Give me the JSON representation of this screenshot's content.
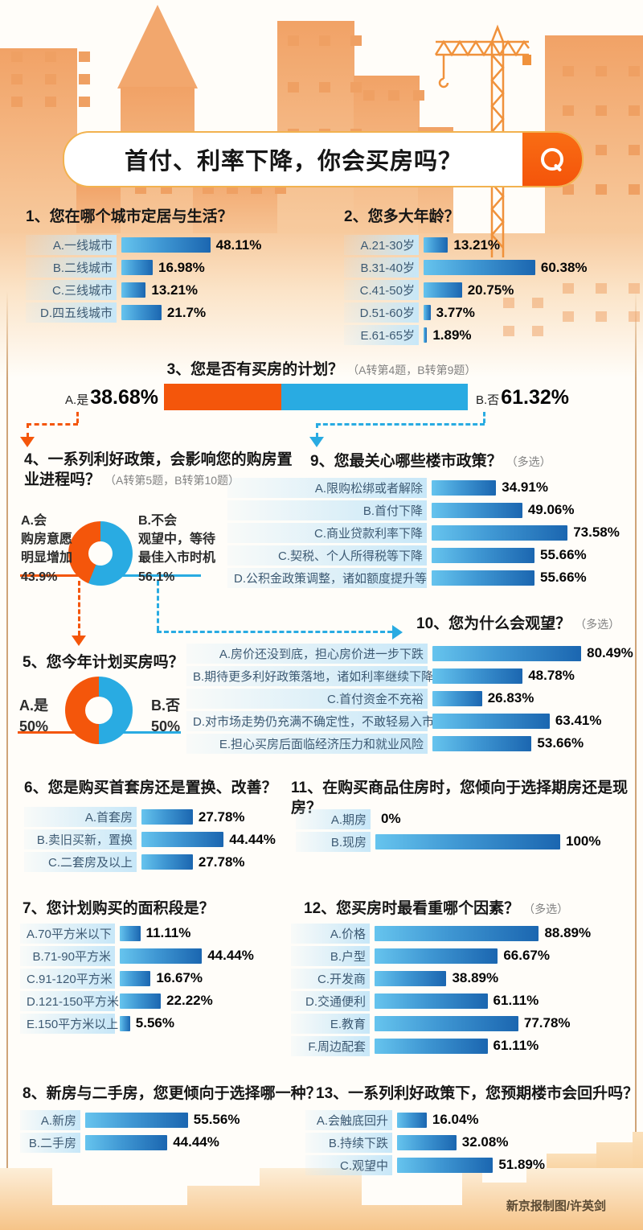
{
  "colors": {
    "orange": "#f4560b",
    "blue": "#29abe2",
    "bar_light": "#66c4ee",
    "bar_dark": "#1b66b0",
    "label_bg": "#c7e7f8",
    "building": "#f1a266",
    "window": "#efa063"
  },
  "header": {
    "title": "首付、利率下降，你会买房吗？"
  },
  "q": {
    "q1": {
      "title": "1、您在哪个城市定居与生活？",
      "rows": [
        {
          "label": "A.一线城市",
          "value": "48.11%",
          "pct": 48.11
        },
        {
          "label": "B.二线城市",
          "value": "16.98%",
          "pct": 16.98
        },
        {
          "label": "C.三线城市",
          "value": "13.21%",
          "pct": 13.21
        },
        {
          "label": "D.四五线城市",
          "value": "21.7%",
          "pct": 21.7
        }
      ]
    },
    "q2": {
      "title": "2、您多大年龄？",
      "rows": [
        {
          "label": "A.21-30岁",
          "value": "13.21%",
          "pct": 13.21
        },
        {
          "label": "B.31-40岁",
          "value": "60.38%",
          "pct": 60.38
        },
        {
          "label": "C.41-50岁",
          "value": "20.75%",
          "pct": 20.75
        },
        {
          "label": "D.51-60岁",
          "value": "3.77%",
          "pct": 3.77
        },
        {
          "label": "E.61-65岁",
          "value": "1.89%",
          "pct": 1.89
        }
      ]
    },
    "q3": {
      "title": "3、您是否有买房的计划？",
      "note": "（A转第4题，B转第9题）",
      "a_label": "A.是",
      "a_value": "38.68%",
      "a_pct": 38.68,
      "b_label": "B.否",
      "b_value": "61.32%",
      "b_pct": 61.32
    },
    "q4": {
      "title": "4、一系列利好政策，会影响您的购房置业进程吗？",
      "note": "（A转第5题，B转第10题）",
      "a_label": "A.会\n购房意愿\n明显增加\n43.9%",
      "a_pct": 43.9,
      "b_label": "B.不会\n观望中，等待\n最佳入市时机\n56.1%",
      "b_pct": 56.1
    },
    "q5": {
      "title": "5、您今年计划买房吗？",
      "a_label": "A.是\n50%",
      "a_pct": 50,
      "b_label": "B.否\n50%",
      "b_pct": 50
    },
    "q6": {
      "title": "6、您是购买首套房还是置换、改善？",
      "rows": [
        {
          "label": "A.首套房",
          "value": "27.78%",
          "pct": 27.78
        },
        {
          "label": "B.卖旧买新，置换",
          "value": "44.44%",
          "pct": 44.44
        },
        {
          "label": "C.二套房及以上",
          "value": "27.78%",
          "pct": 27.78
        }
      ]
    },
    "q7": {
      "title": "7、您计划购买的面积段是？",
      "rows": [
        {
          "label": "A.70平方米以下",
          "value": "11.11%",
          "pct": 11.11
        },
        {
          "label": "B.71-90平方米",
          "value": "44.44%",
          "pct": 44.44
        },
        {
          "label": "C.91-120平方米",
          "value": "16.67%",
          "pct": 16.67
        },
        {
          "label": "D.121-150平方米",
          "value": "22.22%",
          "pct": 22.22
        },
        {
          "label": "E.150平方米以上",
          "value": "5.56%",
          "pct": 5.56
        }
      ]
    },
    "q8": {
      "title": "8、新房与二手房，您更倾向于选择哪一种？",
      "rows": [
        {
          "label": "A.新房",
          "value": "55.56%",
          "pct": 55.56
        },
        {
          "label": "B.二手房",
          "value": "44.44%",
          "pct": 44.44
        }
      ]
    },
    "q9": {
      "title": "9、您最关心哪些楼市政策？",
      "note": "（多选）",
      "rows": [
        {
          "label": "A.限购松绑或者解除",
          "value": "34.91%",
          "pct": 34.91
        },
        {
          "label": "B.首付下降",
          "value": "49.06%",
          "pct": 49.06
        },
        {
          "label": "C.商业贷款利率下降",
          "value": "73.58%",
          "pct": 73.58
        },
        {
          "label": "C.契税、个人所得税等下降",
          "value": "55.66%",
          "pct": 55.66
        },
        {
          "label": "D.公积金政策调整，诸如额度提升等",
          "value": "55.66%",
          "pct": 55.66
        }
      ]
    },
    "q10": {
      "title": "10、您为什么会观望？",
      "note": "（多选）",
      "rows": [
        {
          "label": "A.房价还没到底，担心房价进一步下跌",
          "value": "80.49%",
          "pct": 80.49
        },
        {
          "label": "B.期待更多利好政策落地，诸如利率继续下降",
          "value": "48.78%",
          "pct": 48.78
        },
        {
          "label": "C.首付资金不充裕",
          "value": "26.83%",
          "pct": 26.83
        },
        {
          "label": "D.对市场走势仍充满不确定性，不敢轻易入市",
          "value": "63.41%",
          "pct": 63.41
        },
        {
          "label": "E.担心买房后面临经济压力和就业风险",
          "value": "53.66%",
          "pct": 53.66
        }
      ]
    },
    "q11": {
      "title": "11、在购买商品住房时，您倾向于选择期房还是现房？",
      "rows": [
        {
          "label": "A.期房",
          "value": "0%",
          "pct": 0
        },
        {
          "label": "B.现房",
          "value": "100%",
          "pct": 100
        }
      ]
    },
    "q12": {
      "title": "12、您买房时最看重哪个因素？",
      "note": "（多选）",
      "rows": [
        {
          "label": "A.价格",
          "value": "88.89%",
          "pct": 88.89
        },
        {
          "label": "B.户型",
          "value": "66.67%",
          "pct": 66.67
        },
        {
          "label": "C.开发商",
          "value": "38.89%",
          "pct": 38.89
        },
        {
          "label": "D.交通便利",
          "value": "61.11%",
          "pct": 61.11
        },
        {
          "label": "E.教育",
          "value": "77.78%",
          "pct": 77.78
        },
        {
          "label": "F.周边配套",
          "value": "61.11%",
          "pct": 61.11
        }
      ]
    },
    "q13": {
      "title": "13、一系列利好政策下，您预期楼市会回升吗？",
      "rows": [
        {
          "label": "A.会触底回升",
          "value": "16.04%",
          "pct": 16.04
        },
        {
          "label": "B.持续下跌",
          "value": "32.08%",
          "pct": 32.08
        },
        {
          "label": "C.观望中",
          "value": "51.89%",
          "pct": 51.89
        }
      ]
    }
  },
  "footer": {
    "credit": "新京报制图/许英剑"
  },
  "chart_data": [
    {
      "type": "bar",
      "title": "1、您在哪个城市定居与生活？",
      "categories": [
        "A.一线城市",
        "B.二线城市",
        "C.三线城市",
        "D.四五线城市"
      ],
      "values": [
        48.11,
        16.98,
        13.21,
        21.7
      ],
      "unit": "%"
    },
    {
      "type": "bar",
      "title": "2、您多大年龄？",
      "categories": [
        "A.21-30岁",
        "B.31-40岁",
        "C.41-50岁",
        "D.51-60岁",
        "E.61-65岁"
      ],
      "values": [
        13.21,
        60.38,
        20.75,
        3.77,
        1.89
      ],
      "unit": "%"
    },
    {
      "type": "bar",
      "subtype": "stacked-horizontal",
      "title": "3、您是否有买房的计划？（A转第4题，B转第9题）",
      "categories": [
        "A.是",
        "B.否"
      ],
      "values": [
        38.68,
        61.32
      ],
      "unit": "%"
    },
    {
      "type": "pie",
      "subtype": "donut",
      "title": "4、一系列利好政策，会影响您的购房置业进程吗？（A转第5题，B转第10题）",
      "categories": [
        "A.会 购房意愿明显增加",
        "B.不会 观望中，等待最佳入市时机"
      ],
      "values": [
        43.9,
        56.1
      ],
      "unit": "%"
    },
    {
      "type": "pie",
      "subtype": "donut",
      "title": "5、您今年计划买房吗？",
      "categories": [
        "A.是",
        "B.否"
      ],
      "values": [
        50,
        50
      ],
      "unit": "%"
    },
    {
      "type": "bar",
      "title": "6、您是购买首套房还是置换、改善？",
      "categories": [
        "A.首套房",
        "B.卖旧买新，置换",
        "C.二套房及以上"
      ],
      "values": [
        27.78,
        44.44,
        27.78
      ],
      "unit": "%"
    },
    {
      "type": "bar",
      "title": "7、您计划购买的面积段是？",
      "categories": [
        "A.70平方米以下",
        "B.71-90平方米",
        "C.91-120平方米",
        "D.121-150平方米",
        "E.150平方米以上"
      ],
      "values": [
        11.11,
        44.44,
        16.67,
        22.22,
        5.56
      ],
      "unit": "%"
    },
    {
      "type": "bar",
      "title": "8、新房与二手房，您更倾向于选择哪一种？",
      "categories": [
        "A.新房",
        "B.二手房"
      ],
      "values": [
        55.56,
        44.44
      ],
      "unit": "%"
    },
    {
      "type": "bar",
      "title": "9、您最关心哪些楼市政策？（多选）",
      "categories": [
        "A.限购松绑或者解除",
        "B.首付下降",
        "C.商业贷款利率下降",
        "C.契税、个人所得税等下降",
        "D.公积金政策调整，诸如额度提升等"
      ],
      "values": [
        34.91,
        49.06,
        73.58,
        55.66,
        55.66
      ],
      "unit": "%"
    },
    {
      "type": "bar",
      "title": "10、您为什么会观望？（多选）",
      "categories": [
        "A.房价还没到底，担心房价进一步下跌",
        "B.期待更多利好政策落地，诸如利率继续下降",
        "C.首付资金不充裕",
        "D.对市场走势仍充满不确定性，不敢轻易入市",
        "E.担心买房后面临经济压力和就业风险"
      ],
      "values": [
        80.49,
        48.78,
        26.83,
        63.41,
        53.66
      ],
      "unit": "%"
    },
    {
      "type": "bar",
      "title": "11、在购买商品住房时，您倾向于选择期房还是现房？",
      "categories": [
        "A.期房",
        "B.现房"
      ],
      "values": [
        0,
        100
      ],
      "unit": "%"
    },
    {
      "type": "bar",
      "title": "12、您买房时最看重哪个因素？（多选）",
      "categories": [
        "A.价格",
        "B.户型",
        "C.开发商",
        "D.交通便利",
        "E.教育",
        "F.周边配套"
      ],
      "values": [
        88.89,
        66.67,
        38.89,
        61.11,
        77.78,
        61.11
      ],
      "unit": "%"
    },
    {
      "type": "bar",
      "title": "13、一系列利好政策下，您预期楼市会回升吗？",
      "categories": [
        "A.会触底回升",
        "B.持续下跌",
        "C.观望中"
      ],
      "values": [
        16.04,
        32.08,
        51.89
      ],
      "unit": "%"
    }
  ]
}
